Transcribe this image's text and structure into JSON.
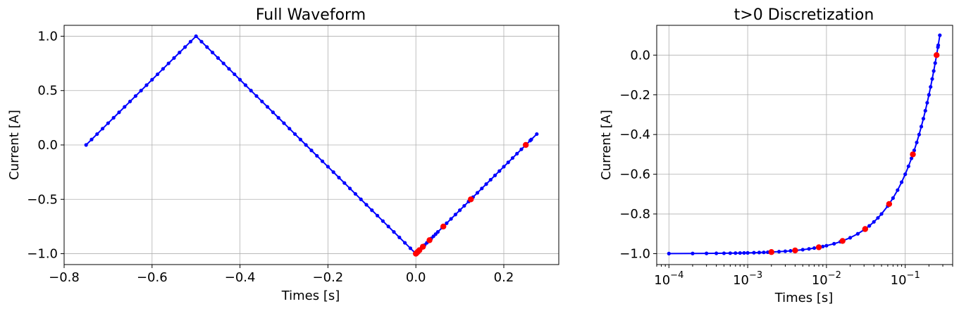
{
  "chart_data": [
    {
      "type": "line",
      "title": "Full Waveform",
      "xlabel": "Times [s]",
      "ylabel": "Current [A]",
      "xlim": [
        -0.8,
        0.325
      ],
      "ylim": [
        -1.1,
        1.1
      ],
      "grid": true,
      "xticks": [
        -0.8,
        -0.6,
        -0.4,
        -0.2,
        0.0,
        0.2
      ],
      "xtick_labels": [
        "−0.8",
        "−0.6",
        "−0.4",
        "−0.2",
        "0.0",
        "0.2"
      ],
      "yticks": [
        -1.0,
        -0.5,
        0.0,
        0.5,
        1.0
      ],
      "ytick_labels": [
        "−1.0",
        "−0.5",
        "0.0",
        "0.5",
        "1.0"
      ],
      "series": [
        {
          "color": "#0000ff",
          "marker": "dot",
          "x": [
            -0.75,
            -0.7375,
            -0.725,
            -0.7125,
            -0.7,
            -0.6875,
            -0.675,
            -0.6625,
            -0.65,
            -0.6375,
            -0.625,
            -0.6125,
            -0.6,
            -0.5875,
            -0.575,
            -0.5625,
            -0.55,
            -0.5375,
            -0.525,
            -0.5125,
            -0.5,
            -0.4875,
            -0.475,
            -0.4625,
            -0.45,
            -0.4375,
            -0.425,
            -0.4125,
            -0.4,
            -0.3875,
            -0.375,
            -0.3625,
            -0.35,
            -0.3375,
            -0.325,
            -0.3125,
            -0.3,
            -0.2875,
            -0.275,
            -0.2625,
            -0.25,
            -0.2375,
            -0.225,
            -0.2125,
            -0.2,
            -0.1875,
            -0.175,
            -0.1625,
            -0.15,
            -0.1375,
            -0.125,
            -0.1125,
            -0.1,
            -0.0875,
            -0.075,
            -0.0625,
            -0.05,
            -0.0375,
            -0.025,
            -0.0125,
            0.0,
            0.0001,
            0.0002,
            0.0003,
            0.0004,
            0.0005,
            0.0006,
            0.0007,
            0.0008,
            0.0009,
            0.001,
            0.0012,
            0.0014,
            0.0016,
            0.0018,
            0.002,
            0.0025,
            0.003,
            0.0035,
            0.004,
            0.005,
            0.006,
            0.007,
            0.008,
            0.009,
            0.01,
            0.0125,
            0.015,
            0.02,
            0.025,
            0.03,
            0.035,
            0.04,
            0.045,
            0.05,
            0.06,
            0.07,
            0.08,
            0.09,
            0.1,
            0.11,
            0.12,
            0.13,
            0.14,
            0.15,
            0.16,
            0.17,
            0.18,
            0.19,
            0.2,
            0.21,
            0.22,
            0.23,
            0.24,
            0.25,
            0.26,
            0.2625,
            0.275
          ],
          "y": [
            0.0,
            0.05,
            0.1,
            0.15,
            0.2,
            0.25,
            0.3,
            0.35,
            0.4,
            0.45,
            0.5,
            0.55,
            0.6,
            0.65,
            0.7,
            0.75,
            0.8,
            0.85,
            0.9,
            0.95,
            1.0,
            0.95,
            0.9,
            0.85,
            0.8,
            0.75,
            0.7,
            0.65,
            0.6,
            0.55,
            0.5,
            0.45,
            0.4,
            0.35,
            0.3,
            0.25,
            0.2,
            0.15,
            0.1,
            0.05,
            0.0,
            -0.05,
            -0.1,
            -0.15,
            -0.2,
            -0.25,
            -0.3,
            -0.35,
            -0.4,
            -0.45,
            -0.5,
            -0.55,
            -0.6,
            -0.65,
            -0.7,
            -0.75,
            -0.8,
            -0.85,
            -0.9,
            -0.95,
            -1.0,
            -0.9996,
            -0.9992,
            -0.9988,
            -0.9984,
            -0.998,
            -0.9976,
            -0.9972,
            -0.9968,
            -0.9964,
            -0.996,
            -0.9952,
            -0.9944,
            -0.9936,
            -0.9928,
            -0.992,
            -0.99,
            -0.988,
            -0.986,
            -0.984,
            -0.98,
            -0.976,
            -0.972,
            -0.968,
            -0.964,
            -0.96,
            -0.95,
            -0.94,
            -0.92,
            -0.9,
            -0.88,
            -0.86,
            -0.84,
            -0.82,
            -0.8,
            -0.76,
            -0.72,
            -0.68,
            -0.64,
            -0.6,
            -0.56,
            -0.52,
            -0.48,
            -0.44,
            -0.4,
            -0.36,
            -0.32,
            -0.28,
            -0.24,
            -0.2,
            -0.16,
            -0.12,
            -0.08,
            -0.04,
            0.0,
            0.04,
            0.05,
            0.1
          ]
        },
        {
          "color": "#ff0000",
          "marker": "dot",
          "line": false,
          "x": [
            0.0,
            0.002,
            0.004,
            0.008,
            0.016,
            0.031,
            0.0625,
            0.125,
            0.25
          ],
          "y": [
            -1.0,
            -0.992,
            -0.984,
            -0.968,
            -0.936,
            -0.876,
            -0.75,
            -0.5,
            0.0
          ]
        }
      ]
    },
    {
      "type": "line",
      "title": "t>0 Discretization",
      "xlabel": "Times [s]",
      "ylabel": "Current [A]",
      "xscale": "log",
      "xlim": [
        7e-05,
        0.4
      ],
      "ylim": [
        -1.055,
        0.15
      ],
      "grid": true,
      "xticks": [
        0.0001,
        0.001,
        0.01,
        0.1
      ],
      "xtick_labels": [
        {
          "base": "10",
          "exp": "−4"
        },
        {
          "base": "10",
          "exp": "−3"
        },
        {
          "base": "10",
          "exp": "−2"
        },
        {
          "base": "10",
          "exp": "−1"
        }
      ],
      "yticks": [
        -1.0,
        -0.8,
        -0.6,
        -0.4,
        -0.2,
        0.0
      ],
      "ytick_labels": [
        "−1.0",
        "−0.8",
        "−0.6",
        "−0.4",
        "−0.2",
        "0.0"
      ],
      "series": [
        {
          "color": "#0000ff",
          "marker": "dot",
          "x": [
            0.0001,
            0.0002,
            0.0003,
            0.0004,
            0.0005,
            0.0006,
            0.0007,
            0.0008,
            0.0009,
            0.001,
            0.0012,
            0.0014,
            0.0016,
            0.0018,
            0.002,
            0.0025,
            0.003,
            0.0035,
            0.004,
            0.005,
            0.006,
            0.007,
            0.008,
            0.009,
            0.01,
            0.0125,
            0.015,
            0.02,
            0.025,
            0.03,
            0.035,
            0.04,
            0.045,
            0.05,
            0.06,
            0.07,
            0.08,
            0.09,
            0.1,
            0.11,
            0.12,
            0.13,
            0.14,
            0.15,
            0.16,
            0.17,
            0.18,
            0.19,
            0.2,
            0.21,
            0.22,
            0.23,
            0.24,
            0.25,
            0.26,
            0.2625,
            0.275
          ],
          "y": [
            -0.9996,
            -0.9992,
            -0.9988,
            -0.9984,
            -0.998,
            -0.9976,
            -0.9972,
            -0.9968,
            -0.9964,
            -0.996,
            -0.9952,
            -0.9944,
            -0.9936,
            -0.9928,
            -0.992,
            -0.99,
            -0.988,
            -0.986,
            -0.984,
            -0.98,
            -0.976,
            -0.972,
            -0.968,
            -0.964,
            -0.96,
            -0.95,
            -0.94,
            -0.92,
            -0.9,
            -0.88,
            -0.86,
            -0.84,
            -0.82,
            -0.8,
            -0.76,
            -0.72,
            -0.68,
            -0.64,
            -0.6,
            -0.56,
            -0.52,
            -0.48,
            -0.44,
            -0.4,
            -0.36,
            -0.32,
            -0.28,
            -0.24,
            -0.2,
            -0.16,
            -0.12,
            -0.08,
            -0.04,
            0.0,
            0.04,
            0.05,
            0.1
          ]
        },
        {
          "color": "#ff0000",
          "marker": "dot",
          "line": false,
          "x": [
            0.002,
            0.004,
            0.008,
            0.016,
            0.031,
            0.0625,
            0.125,
            0.25
          ],
          "y": [
            -0.992,
            -0.984,
            -0.968,
            -0.936,
            -0.876,
            -0.75,
            -0.5,
            0.0
          ]
        }
      ]
    }
  ]
}
